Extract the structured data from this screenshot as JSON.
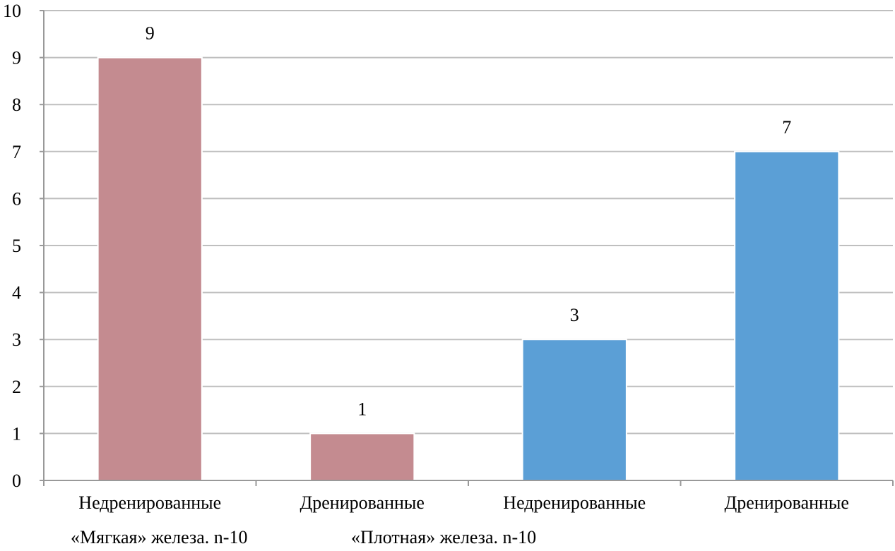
{
  "chart_data": {
    "type": "bar",
    "title": "",
    "xlabel": "",
    "ylabel": "",
    "ylim": [
      0,
      10
    ],
    "y_ticks": [
      "0",
      "1",
      "2",
      "3",
      "4",
      "5",
      "6",
      "7",
      "8",
      "9",
      "10"
    ],
    "grid": true,
    "legend": "none",
    "categories": [
      "Недренированные",
      "Дренированные",
      "Недренированные",
      "Дренированные"
    ],
    "groups": [
      {
        "label": "«Мягкая» железа. n-10",
        "category_indexes": [
          0,
          1
        ],
        "color": "#c48b90"
      },
      {
        "label": "«Плотная» железа. n-10",
        "category_indexes": [
          2,
          3
        ],
        "color": "#5b9fd6"
      }
    ],
    "values": [
      9,
      1,
      3,
      7
    ],
    "data_labels": [
      "9",
      "1",
      "3",
      "7"
    ],
    "bar_colors": [
      "#c48b90",
      "#c48b90",
      "#5b9fd6",
      "#5b9fd6"
    ]
  },
  "colors": {
    "grid": "#bfbfbf",
    "axis": "#999999"
  }
}
